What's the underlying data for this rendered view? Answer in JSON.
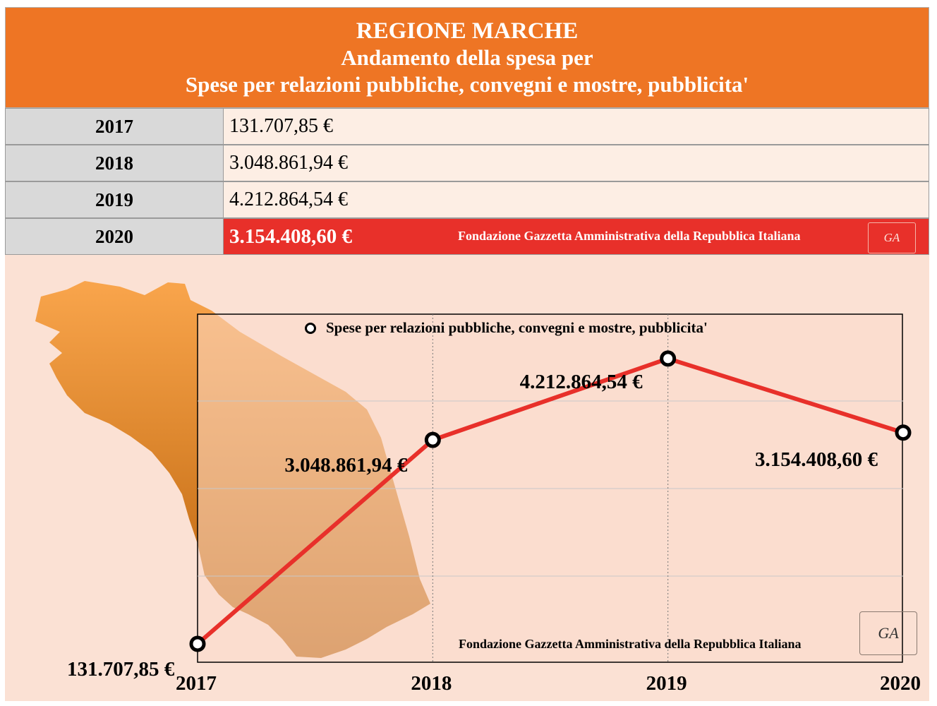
{
  "header": {
    "line1": "REGIONE MARCHE",
    "line2": "Andamento della spesa per",
    "line3": "Spese per relazioni pubbliche, convegni e mostre, pubblicita'"
  },
  "table": {
    "rows": [
      {
        "year": "2017",
        "value": "131.707,85 €"
      },
      {
        "year": "2018",
        "value": "3.048.861,94 €"
      },
      {
        "year": "2019",
        "value": "4.212.864,54 €"
      },
      {
        "year": "2020",
        "value": "3.154.408,60 €"
      }
    ],
    "source": "Fondazione Gazzetta Amministrativa della Repubblica Italiana",
    "logo_text": "GA"
  },
  "chart_data": {
    "type": "line",
    "categories": [
      "2017",
      "2018",
      "2019",
      "2020"
    ],
    "series": [
      {
        "name": "Spese per relazioni pubbliche, convegni e mostre, pubblicita'",
        "values": [
          131707.85,
          3048861.94,
          4212864.54,
          3154408.6
        ],
        "labels": [
          "131.707,85 €",
          "3.048.861,94 €",
          "4.212.864,54 €",
          "3.154.408,60 €"
        ],
        "color": "#e8302a"
      }
    ],
    "ylim": [
      0,
      5000000
    ],
    "legend": "top",
    "grid": true,
    "source": "Fondazione Gazzetta Amministrativa della Repubblica Italiana",
    "logo_text": "GA"
  }
}
